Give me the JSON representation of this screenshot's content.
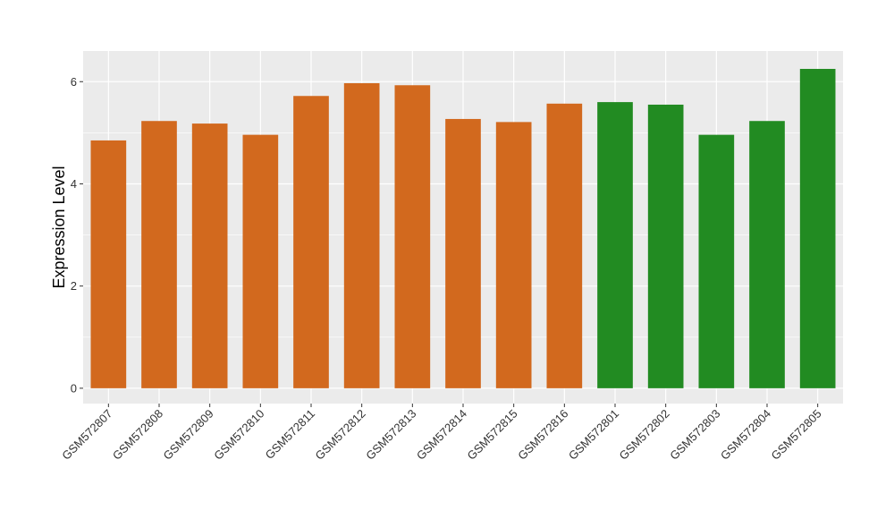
{
  "chart_data": {
    "type": "bar",
    "title": "",
    "xlabel": "",
    "ylabel": "Expression Level",
    "ylim": [
      -0.3,
      6.6
    ],
    "yticks": [
      0,
      2,
      4,
      6
    ],
    "grid": true,
    "legend": "none",
    "colors": {
      "group1": "#D2691E",
      "group2": "#228B22",
      "panel": "#EBEBEB",
      "grid": "#FFFFFF"
    },
    "categories": [
      "GSM572807",
      "GSM572808",
      "GSM572809",
      "GSM572810",
      "GSM572811",
      "GSM572812",
      "GSM572813",
      "GSM572814",
      "GSM572815",
      "GSM572816",
      "GSM572801",
      "GSM572802",
      "GSM572803",
      "GSM572804",
      "GSM572805"
    ],
    "values": [
      4.85,
      5.23,
      5.18,
      4.96,
      5.72,
      5.97,
      5.93,
      5.27,
      5.21,
      5.57,
      5.6,
      5.55,
      4.96,
      5.23,
      6.25
    ],
    "groups": [
      1,
      1,
      1,
      1,
      1,
      1,
      1,
      1,
      1,
      1,
      2,
      2,
      2,
      2,
      2
    ]
  }
}
